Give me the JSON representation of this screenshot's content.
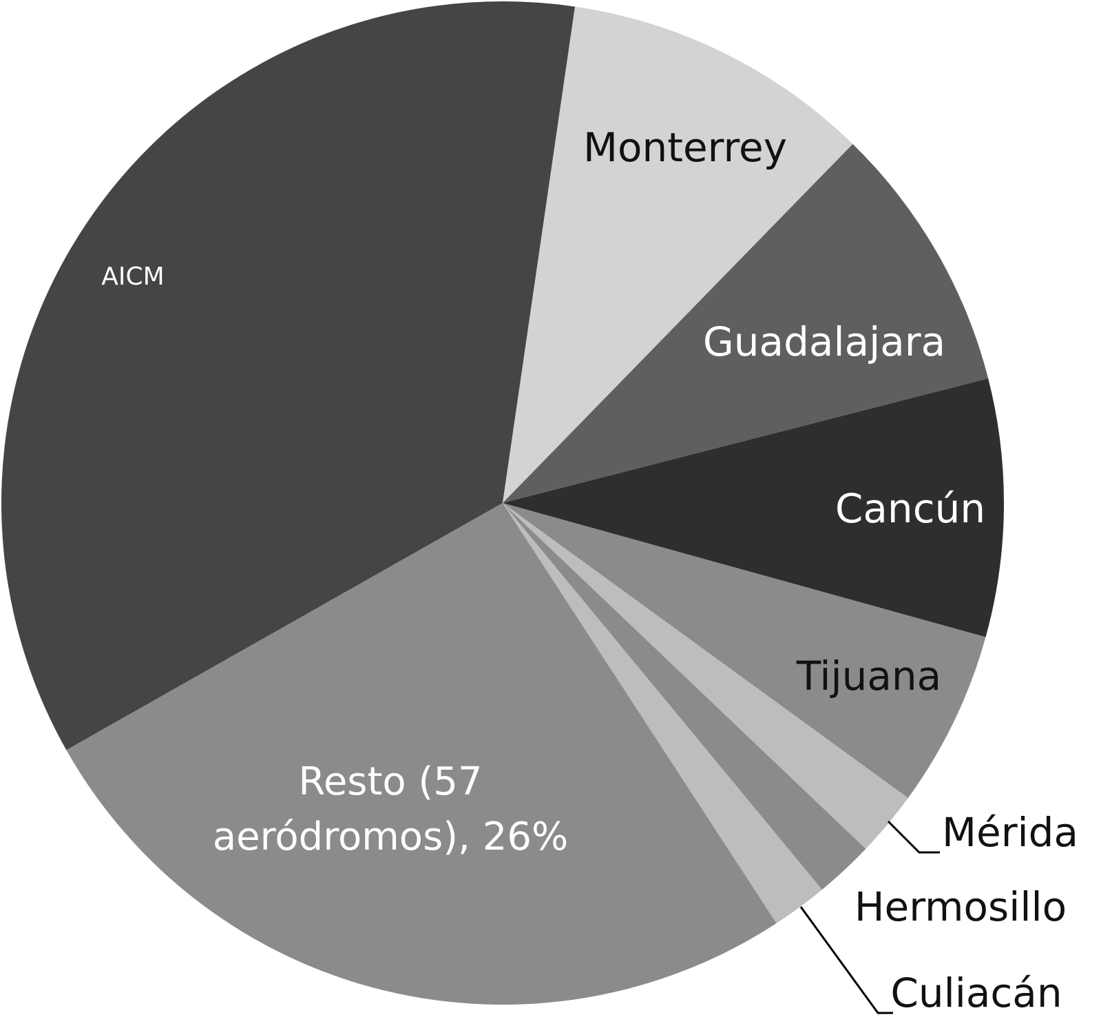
{
  "chart_data": {
    "type": "pie",
    "categories": [
      "AICM",
      "Monterrey",
      "Guadalajara",
      "Cancún",
      "Tijuana",
      "Mérida",
      "Hermosillo",
      "Culiacán",
      "Resto (57 aeródromos), 26%"
    ],
    "values": [
      35.5,
      10.0,
      8.7,
      8.3,
      5.7,
      2.1,
      1.9,
      1.8,
      26
    ],
    "colors": [
      "#454545",
      "#d3d3d3",
      "#5f5f5f",
      "#2e2e2e",
      "#8b8b8b",
      "#bdbdbd",
      "#8b8b8b",
      "#bdbdbd",
      "#8b8b8b"
    ]
  }
}
